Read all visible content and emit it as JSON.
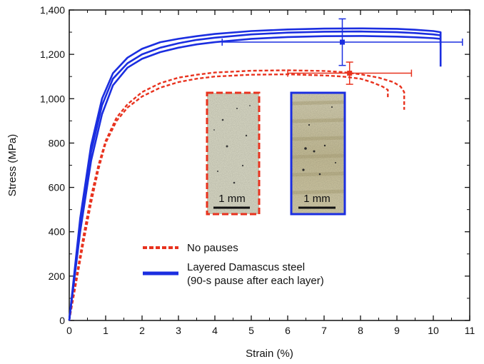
{
  "chart_data": {
    "type": "line",
    "title": "",
    "xlabel": "Strain (%)",
    "ylabel": "Stress (MPa)",
    "xlim": [
      0,
      11
    ],
    "ylim": [
      0,
      1400
    ],
    "x_ticks": [
      "0",
      "1",
      "2",
      "3",
      "4",
      "5",
      "6",
      "7",
      "8",
      "9",
      "10",
      "11"
    ],
    "y_ticks": [
      "0",
      "200",
      "400",
      "600",
      "800",
      "1,000",
      "1,200",
      "1,400"
    ],
    "grid": false,
    "legend_position": "bottom-center",
    "series": [
      {
        "name": "No pauses",
        "style": "dashed",
        "color": "#e8321e",
        "curves": [
          {
            "x": [
              0,
              0.2,
              0.4,
              0.6,
              0.8,
              1.0,
              1.3,
              1.6,
              2.0,
              2.5,
              3.0,
              3.5,
              4.0,
              5.0,
              6.0,
              7.0,
              7.5,
              8.0,
              8.3,
              8.6,
              8.75,
              8.75
            ],
            "y": [
              0,
              180,
              360,
              530,
              680,
              800,
              900,
              960,
              1010,
              1050,
              1075,
              1090,
              1100,
              1108,
              1110,
              1105,
              1100,
              1090,
              1075,
              1055,
              1040,
              1000
            ]
          },
          {
            "x": [
              0,
              0.2,
              0.4,
              0.6,
              0.8,
              1.0,
              1.3,
              1.6,
              2.0,
              2.5,
              3.0,
              3.5,
              4.0,
              5.0,
              6.0,
              7.0,
              7.5,
              8.0,
              8.5,
              8.9,
              9.1,
              9.2,
              9.2
            ],
            "y": [
              0,
              200,
              390,
              560,
              700,
              810,
              915,
              975,
              1030,
              1070,
              1095,
              1108,
              1118,
              1126,
              1128,
              1125,
              1120,
              1110,
              1095,
              1075,
              1055,
              1030,
              950
            ]
          }
        ]
      },
      {
        "name": "Layered Damascus steel\n(90-s pause after each layer)",
        "style": "solid",
        "color": "#1b2ee0",
        "curves": [
          {
            "x": [
              0,
              0.3,
              0.6,
              0.9,
              1.2,
              1.6,
              2.0,
              2.5,
              3.0,
              3.5,
              4.0,
              5.0,
              6.0,
              7.0,
              8.0,
              9.0,
              9.5,
              10.0,
              10.2,
              10.2
            ],
            "y": [
              0,
              400,
              720,
              930,
              1060,
              1140,
              1180,
              1210,
              1230,
              1245,
              1255,
              1270,
              1278,
              1282,
              1283,
              1280,
              1277,
              1273,
              1270,
              1250
            ]
          },
          {
            "x": [
              0,
              0.3,
              0.6,
              0.9,
              1.2,
              1.6,
              2.0,
              2.5,
              3.0,
              3.5,
              4.0,
              5.0,
              6.0,
              7.0,
              8.0,
              9.0,
              9.5,
              10.0,
              10.2,
              10.2
            ],
            "y": [
              0,
              430,
              760,
              970,
              1090,
              1160,
              1200,
              1230,
              1250,
              1265,
              1275,
              1290,
              1298,
              1302,
              1303,
              1300,
              1296,
              1290,
              1286,
              1240
            ]
          },
          {
            "x": [
              0,
              0.3,
              0.6,
              0.9,
              1.2,
              1.6,
              2.0,
              2.5,
              3.0,
              3.5,
              4.0,
              5.0,
              6.0,
              7.0,
              8.0,
              9.0,
              9.5,
              10.0,
              10.2,
              10.2
            ],
            "y": [
              0,
              460,
              790,
              1000,
              1115,
              1185,
              1225,
              1255,
              1270,
              1282,
              1292,
              1305,
              1312,
              1316,
              1317,
              1315,
              1311,
              1305,
              1300,
              1145
            ]
          }
        ]
      }
    ],
    "error_bars": [
      {
        "series": "No pauses",
        "x": 7.7,
        "y": 1115,
        "x_err": [
          1.7,
          1.7
        ],
        "y_err": [
          50,
          50
        ],
        "color": "#e8321e"
      },
      {
        "series": "Layered Damascus steel",
        "x": 7.5,
        "y": 1255,
        "x_err": [
          3.3,
          3.3
        ],
        "y_err": [
          105,
          105
        ],
        "color": "#1b2ee0"
      }
    ],
    "insets": [
      {
        "name": "No pauses",
        "border": "dashed",
        "color": "#e8321e",
        "scale_bar": "1 mm"
      },
      {
        "name": "Layered Damascus steel",
        "border": "solid",
        "color": "#1b2ee0",
        "scale_bar": "1 mm"
      }
    ],
    "legend": [
      {
        "label_lines": [
          "No pauses"
        ],
        "style": "dashed",
        "color": "#e8321e"
      },
      {
        "label_lines": [
          "Layered Damascus steel",
          "(90-s pause after each layer)"
        ],
        "style": "solid",
        "color": "#1b2ee0"
      }
    ]
  }
}
